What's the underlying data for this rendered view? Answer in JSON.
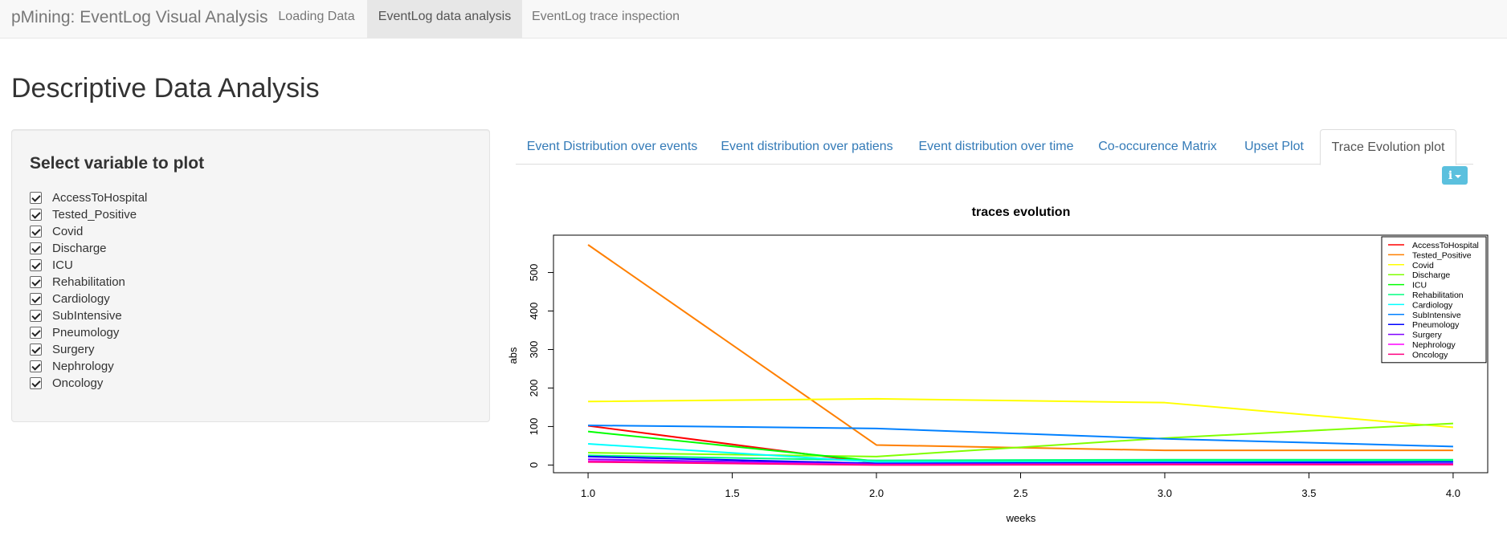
{
  "navbar": {
    "brand": "pMining: EventLog Visual Analysis",
    "items": [
      {
        "label": "Loading Data"
      },
      {
        "label": "EventLog data analysis"
      },
      {
        "label": "EventLog trace inspection"
      }
    ]
  },
  "page": {
    "title": "Descriptive Data Analysis"
  },
  "sidebar": {
    "title": "Select variable to plot",
    "variables": [
      {
        "label": "AccessToHospital",
        "checked": true
      },
      {
        "label": "Tested_Positive",
        "checked": true
      },
      {
        "label": "Covid",
        "checked": true
      },
      {
        "label": "Discharge",
        "checked": true
      },
      {
        "label": "ICU",
        "checked": true
      },
      {
        "label": "Rehabilitation",
        "checked": true
      },
      {
        "label": "Cardiology",
        "checked": true
      },
      {
        "label": "SubIntensive",
        "checked": true
      },
      {
        "label": "Pneumology",
        "checked": true
      },
      {
        "label": "Surgery",
        "checked": true
      },
      {
        "label": "Nephrology",
        "checked": true
      },
      {
        "label": "Oncology",
        "checked": true
      }
    ]
  },
  "tabs": [
    {
      "label": "Event Distribution over events"
    },
    {
      "label": "Event distribution over patiens"
    },
    {
      "label": "Event distribution over time"
    },
    {
      "label": "Co-occurence Matrix"
    },
    {
      "label": "Upset Plot"
    },
    {
      "label": "Trace Evolution plot"
    }
  ],
  "chart_data": {
    "type": "line",
    "title": "traces evolution",
    "xlabel": "weeks",
    "ylabel": "abs",
    "x": [
      1,
      2,
      3,
      4
    ],
    "xlim": [
      0.88,
      4.12
    ],
    "ylim": [
      -20,
      597
    ],
    "xticks": [
      "1.0",
      "1.5",
      "2.0",
      "2.5",
      "3.0",
      "3.5",
      "4.0"
    ],
    "yticks": [
      "0",
      "100",
      "200",
      "300",
      "400",
      "500"
    ],
    "legend_position": "top-right",
    "series": [
      {
        "name": "AccessToHospital",
        "color": "#ff0000",
        "values": [
          102,
          5,
          8,
          9
        ]
      },
      {
        "name": "Tested_Positive",
        "color": "#ff7f00",
        "values": [
          572,
          52,
          38,
          38
        ]
      },
      {
        "name": "Covid",
        "color": "#ffff00",
        "values": [
          165,
          172,
          162,
          98
        ]
      },
      {
        "name": "Discharge",
        "color": "#80ff00",
        "values": [
          32,
          22,
          70,
          108
        ]
      },
      {
        "name": "ICU",
        "color": "#00ff00",
        "values": [
          87,
          10,
          12,
          12
        ]
      },
      {
        "name": "Rehabilitation",
        "color": "#00ff80",
        "values": [
          25,
          12,
          14,
          14
        ]
      },
      {
        "name": "Cardiology",
        "color": "#00ffff",
        "values": [
          55,
          8,
          9,
          9
        ]
      },
      {
        "name": "SubIntensive",
        "color": "#0080ff",
        "values": [
          103,
          95,
          68,
          48
        ]
      },
      {
        "name": "Pneumology",
        "color": "#0000ff",
        "values": [
          22,
          4,
          6,
          8
        ]
      },
      {
        "name": "Surgery",
        "color": "#7f00ff",
        "values": [
          15,
          2,
          3,
          3
        ]
      },
      {
        "name": "Nephrology",
        "color": "#ff00ff",
        "values": [
          10,
          1,
          2,
          2
        ]
      },
      {
        "name": "Oncology",
        "color": "#ff0080",
        "values": [
          8,
          0,
          1,
          1
        ]
      }
    ]
  }
}
